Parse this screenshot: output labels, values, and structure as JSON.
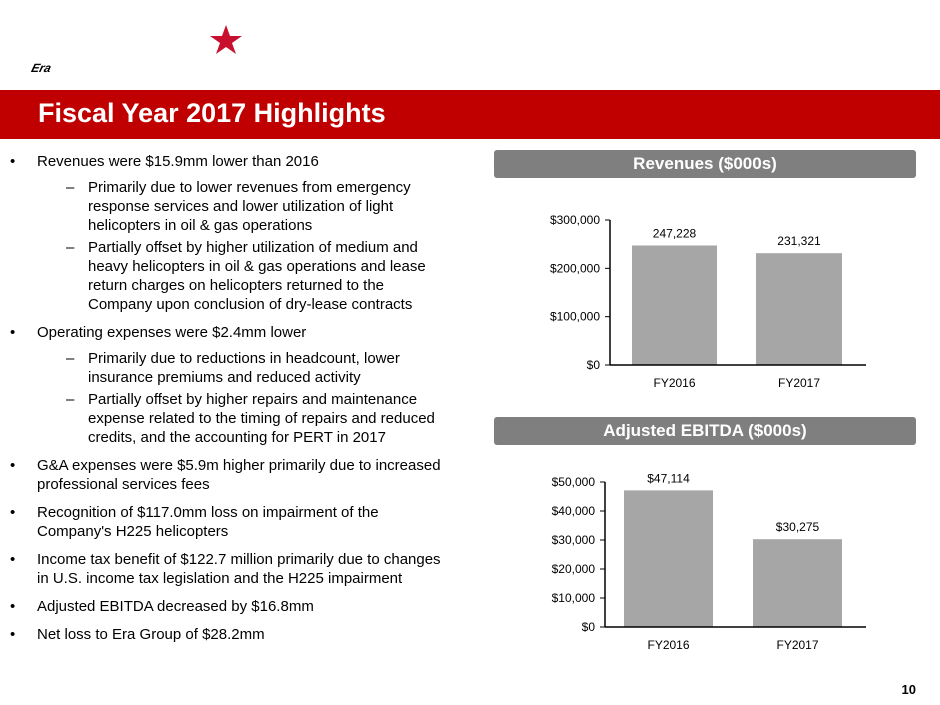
{
  "logo": {
    "text": "Era",
    "star_color": "#c8102e"
  },
  "title": "Fiscal Year 2017 Highlights",
  "bullets": [
    {
      "text": "Revenues were $15.9mm lower than 2016",
      "subs": [
        "Primarily due to lower revenues from emergency response services and lower utilization of light helicopters in oil & gas operations",
        "Partially offset by higher utilization of medium and heavy helicopters in oil & gas operations and lease return charges on helicopters returned to the Company upon conclusion of dry-lease contracts"
      ]
    },
    {
      "text": "Operating expenses were $2.4mm lower",
      "subs": [
        "Primarily due to reductions in headcount, lower insurance premiums and reduced activity",
        "Partially offset by higher repairs and maintenance expense related to the timing of repairs and reduced credits, and the accounting for PERT in 2017"
      ]
    },
    {
      "text": "G&A expenses were $5.9m higher primarily due to increased professional services fees",
      "subs": []
    },
    {
      "text": "Recognition of $117.0mm loss on impairment of the Company's H225 helicopters",
      "subs": []
    },
    {
      "text": "Income tax benefit of $122.7 million primarily due to changes in U.S. income tax legislation and the H225 impairment",
      "subs": []
    },
    {
      "text": "Adjusted EBITDA decreased by $16.8mm",
      "subs": []
    },
    {
      "text": "Net loss to Era Group of $28.2mm",
      "subs": []
    }
  ],
  "bullet_marker": "•",
  "sub_marker": "–",
  "page_number": "10",
  "chart_data": [
    {
      "type": "bar",
      "title": "Revenues ($000s)",
      "categories": [
        "FY2016",
        "FY2017"
      ],
      "values": [
        247228,
        231321
      ],
      "labels": [
        "247,228",
        "231,321"
      ],
      "ylim": [
        0,
        300000
      ],
      "yticks": [
        0,
        100000,
        200000,
        300000
      ],
      "ytick_labels": [
        "$0",
        "$100,000",
        "$200,000",
        "$300,000"
      ],
      "xlabel": "",
      "ylabel": "",
      "grid": false,
      "bar_color": "#a6a6a6"
    },
    {
      "type": "bar",
      "title": "Adjusted EBITDA ($000s)",
      "categories": [
        "FY2016",
        "FY2017"
      ],
      "values": [
        47114,
        30275
      ],
      "labels": [
        "$47,114",
        "$30,275"
      ],
      "ylim": [
        0,
        50000
      ],
      "yticks": [
        0,
        10000,
        20000,
        30000,
        40000,
        50000
      ],
      "ytick_labels": [
        "$0",
        "$10,000",
        "$20,000",
        "$30,000",
        "$40,000",
        "$50,000"
      ],
      "xlabel": "",
      "ylabel": "",
      "grid": false,
      "bar_color": "#a6a6a6"
    }
  ]
}
